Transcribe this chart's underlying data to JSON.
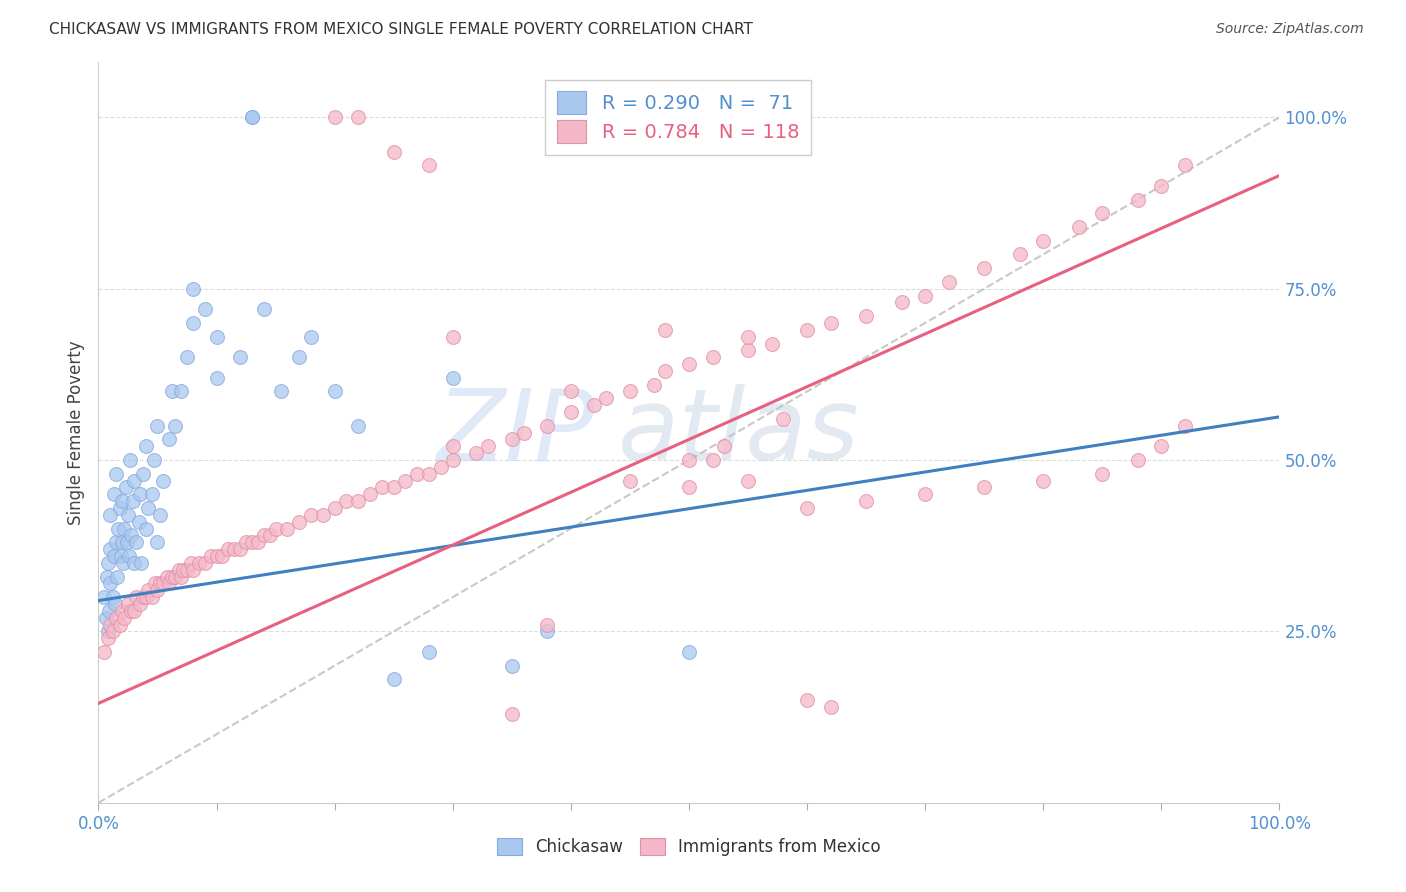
{
  "title": "CHICKASAW VS IMMIGRANTS FROM MEXICO SINGLE FEMALE POVERTY CORRELATION CHART",
  "source": "Source: ZipAtlas.com",
  "ylabel": "Single Female Poverty",
  "legend_r1": "R = 0.290",
  "legend_n1": "N =  71",
  "legend_r2": "R = 0.784",
  "legend_n2": "N = 118",
  "blue_color": "#A8C8F0",
  "pink_color": "#F5B8C8",
  "blue_line_color": "#4080C0",
  "pink_line_color": "#E86080",
  "blue_line_slope": 0.268,
  "blue_line_intercept": 0.295,
  "pink_line_slope": 0.77,
  "pink_line_intercept": 0.145,
  "diag_line_color": "#BBBBBB",
  "axis_color": "#5090D0",
  "grid_color": "#DDDDDD",
  "background_color": "#FFFFFF",
  "blue_scatter_x": [
    0.005,
    0.006,
    0.007,
    0.008,
    0.008,
    0.009,
    0.01,
    0.01,
    0.01,
    0.012,
    0.013,
    0.013,
    0.014,
    0.015,
    0.015,
    0.016,
    0.017,
    0.018,
    0.019,
    0.02,
    0.02,
    0.021,
    0.022,
    0.023,
    0.024,
    0.025,
    0.026,
    0.027,
    0.028,
    0.029,
    0.03,
    0.03,
    0.032,
    0.034,
    0.035,
    0.036,
    0.038,
    0.04,
    0.04,
    0.042,
    0.045,
    0.047,
    0.05,
    0.05,
    0.052,
    0.055,
    0.06,
    0.062,
    0.065,
    0.07,
    0.075,
    0.08,
    0.08,
    0.09,
    0.1,
    0.1,
    0.12,
    0.13,
    0.13,
    0.14,
    0.155,
    0.17,
    0.18,
    0.2,
    0.22,
    0.25,
    0.28,
    0.3,
    0.35,
    0.38,
    0.5
  ],
  "blue_scatter_y": [
    0.3,
    0.27,
    0.33,
    0.25,
    0.35,
    0.28,
    0.32,
    0.37,
    0.42,
    0.3,
    0.36,
    0.45,
    0.29,
    0.38,
    0.48,
    0.33,
    0.4,
    0.43,
    0.36,
    0.38,
    0.44,
    0.35,
    0.4,
    0.46,
    0.38,
    0.42,
    0.36,
    0.5,
    0.39,
    0.44,
    0.35,
    0.47,
    0.38,
    0.41,
    0.45,
    0.35,
    0.48,
    0.4,
    0.52,
    0.43,
    0.45,
    0.5,
    0.38,
    0.55,
    0.42,
    0.47,
    0.53,
    0.6,
    0.55,
    0.6,
    0.65,
    0.7,
    0.75,
    0.72,
    0.62,
    0.68,
    0.65,
    1.0,
    1.0,
    0.72,
    0.6,
    0.65,
    0.68,
    0.6,
    0.55,
    0.18,
    0.22,
    0.62,
    0.2,
    0.25,
    0.22
  ],
  "pink_scatter_x": [
    0.005,
    0.008,
    0.01,
    0.012,
    0.015,
    0.018,
    0.02,
    0.022,
    0.025,
    0.028,
    0.03,
    0.032,
    0.035,
    0.038,
    0.04,
    0.042,
    0.045,
    0.048,
    0.05,
    0.052,
    0.055,
    0.058,
    0.06,
    0.062,
    0.065,
    0.068,
    0.07,
    0.072,
    0.075,
    0.078,
    0.08,
    0.085,
    0.09,
    0.095,
    0.1,
    0.105,
    0.11,
    0.115,
    0.12,
    0.125,
    0.13,
    0.135,
    0.14,
    0.145,
    0.15,
    0.16,
    0.17,
    0.18,
    0.19,
    0.2,
    0.21,
    0.22,
    0.23,
    0.24,
    0.25,
    0.26,
    0.27,
    0.28,
    0.29,
    0.3,
    0.32,
    0.33,
    0.35,
    0.36,
    0.38,
    0.4,
    0.42,
    0.43,
    0.45,
    0.47,
    0.48,
    0.5,
    0.52,
    0.55,
    0.57,
    0.6,
    0.62,
    0.65,
    0.68,
    0.7,
    0.72,
    0.75,
    0.78,
    0.8,
    0.83,
    0.85,
    0.88,
    0.9,
    0.92,
    0.2,
    0.22,
    0.25,
    0.28,
    0.3,
    0.35,
    0.4,
    0.45,
    0.5,
    0.55,
    0.6,
    0.62,
    0.3,
    0.5,
    0.52,
    0.55,
    0.38,
    0.48,
    0.53,
    0.58,
    0.6,
    0.65,
    0.7,
    0.75,
    0.8,
    0.85,
    0.88,
    0.9,
    0.92
  ],
  "pink_scatter_y": [
    0.22,
    0.24,
    0.26,
    0.25,
    0.27,
    0.26,
    0.28,
    0.27,
    0.29,
    0.28,
    0.28,
    0.3,
    0.29,
    0.3,
    0.3,
    0.31,
    0.3,
    0.32,
    0.31,
    0.32,
    0.32,
    0.33,
    0.32,
    0.33,
    0.33,
    0.34,
    0.33,
    0.34,
    0.34,
    0.35,
    0.34,
    0.35,
    0.35,
    0.36,
    0.36,
    0.36,
    0.37,
    0.37,
    0.37,
    0.38,
    0.38,
    0.38,
    0.39,
    0.39,
    0.4,
    0.4,
    0.41,
    0.42,
    0.42,
    0.43,
    0.44,
    0.44,
    0.45,
    0.46,
    0.46,
    0.47,
    0.48,
    0.48,
    0.49,
    0.5,
    0.51,
    0.52,
    0.53,
    0.54,
    0.55,
    0.57,
    0.58,
    0.59,
    0.6,
    0.61,
    0.63,
    0.64,
    0.65,
    0.66,
    0.67,
    0.69,
    0.7,
    0.71,
    0.73,
    0.74,
    0.76,
    0.78,
    0.8,
    0.82,
    0.84,
    0.86,
    0.88,
    0.9,
    0.93,
    1.0,
    1.0,
    0.95,
    0.93,
    0.68,
    0.13,
    0.6,
    0.47,
    0.46,
    0.47,
    0.15,
    0.14,
    0.52,
    0.5,
    0.5,
    0.68,
    0.26,
    0.69,
    0.52,
    0.56,
    0.43,
    0.44,
    0.45,
    0.46,
    0.47,
    0.48,
    0.5,
    0.52,
    0.55
  ]
}
